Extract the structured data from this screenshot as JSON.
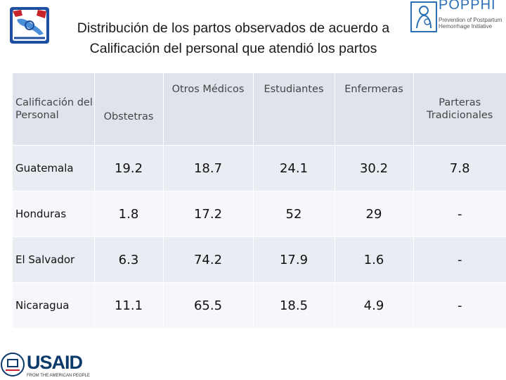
{
  "title": "Distribución de los partos observados de acuerdo a Calificación del personal que atendió los partos",
  "logo_poppi": {
    "name": "POPPHI",
    "subtitle": "Prevention of Postpartum Hemorrhage Initiative"
  },
  "logo_usaid": {
    "name": "USAID",
    "subtitle": "FROM THE AMERICAN PEOPLE"
  },
  "table": {
    "headers": [
      "Calificación del Personal",
      "Obstetras",
      "Otros Médicos",
      "Estudiantes",
      "Enfermeras",
      "Parteras Tradicionales"
    ],
    "rows": [
      {
        "country": "Guatemala",
        "values": [
          "19.2",
          "18.7",
          "24.1",
          "30.2",
          "7.8"
        ]
      },
      {
        "country": "Honduras",
        "values": [
          "1.8",
          "17.2",
          "52",
          "29",
          "-"
        ]
      },
      {
        "country": "El Salvador",
        "values": [
          "6.3",
          "74.2",
          "17.9",
          "1.6",
          "-"
        ]
      },
      {
        "country": "Nicaragua",
        "values": [
          "11.1",
          "65.5",
          "18.5",
          "4.9",
          "-"
        ]
      }
    ]
  },
  "colors": {
    "header_bg": "#dfe4ec",
    "row_bg_odd": "#e9ecf2",
    "row_bg_even": "#f6f7fa",
    "accent_blue": "#2b6fb5",
    "usaid_navy": "#0b3a6b"
  },
  "icons": [
    "central-america-emblem-icon",
    "popphi-logo-icon",
    "usaid-eagle-seal-icon"
  ]
}
